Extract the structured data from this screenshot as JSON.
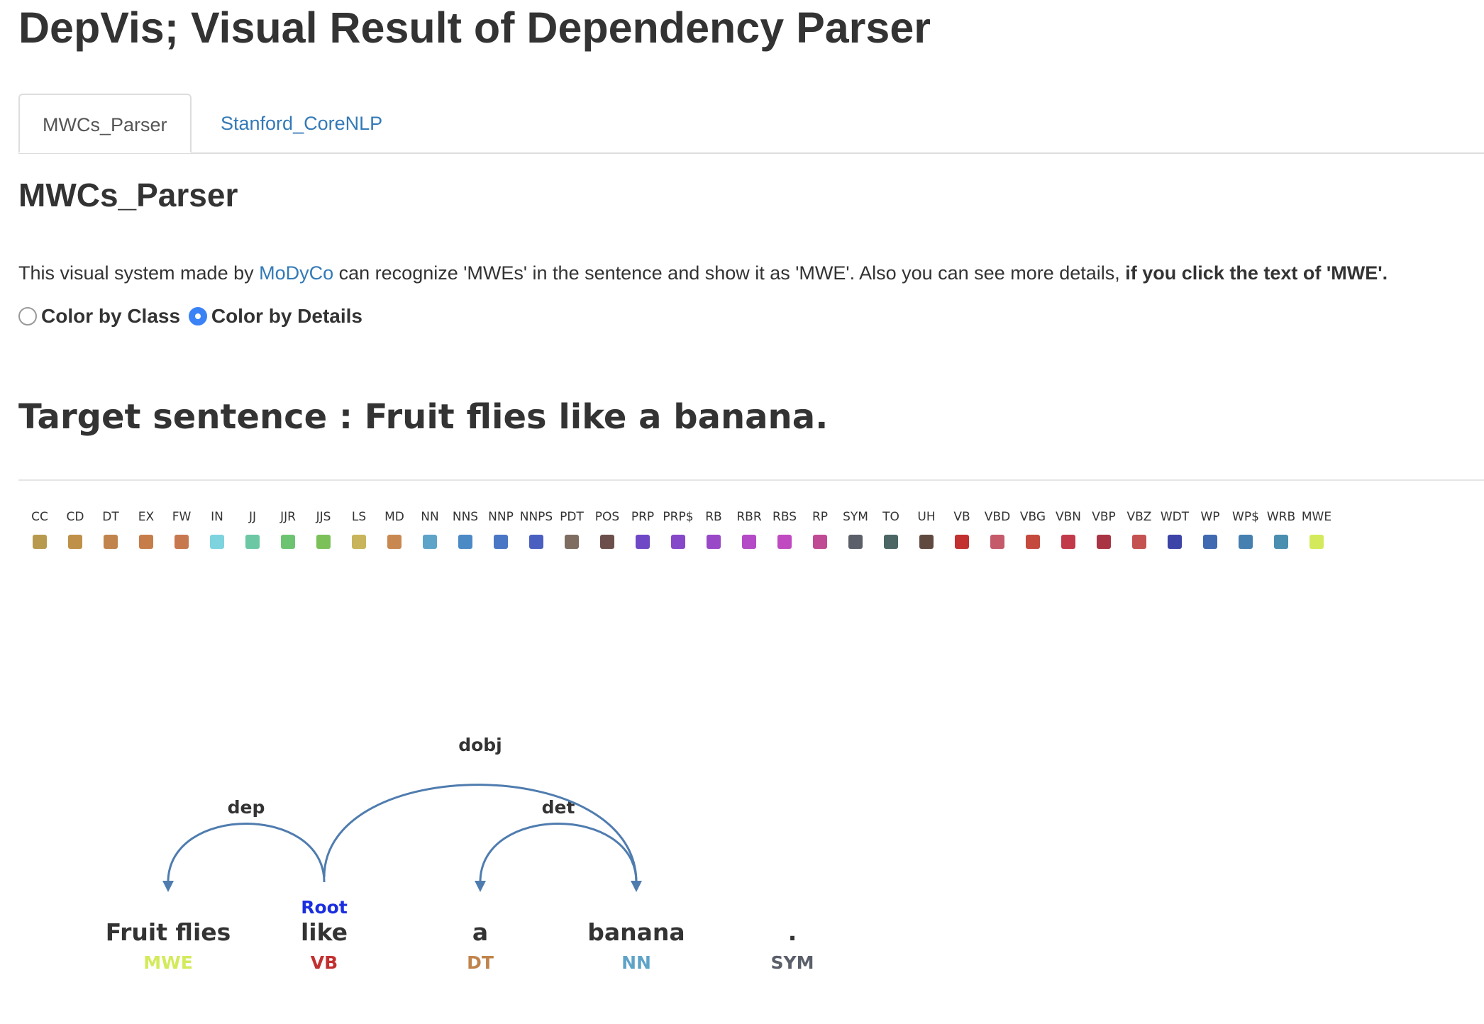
{
  "page": {
    "title": "DepVis; Visual Result of Dependency Parser"
  },
  "tabs": [
    {
      "label": "MWCs_Parser",
      "active": true
    },
    {
      "label": "Stanford_CoreNLP",
      "active": false
    }
  ],
  "section": {
    "title": "MWCs_Parser",
    "desc_prefix": "This visual system made by ",
    "desc_link": "MoDyCo",
    "desc_middle": " can recognize 'MWEs' in the sentence and show it as 'MWE'. Also you can see more details, ",
    "desc_bold": "if you click the text of 'MWE'."
  },
  "color_mode": {
    "options": [
      {
        "label": "Color by Class",
        "checked": false
      },
      {
        "label": "Color by Details",
        "checked": true
      }
    ]
  },
  "target": {
    "text": "Target sentence : Fruit flies like a banana."
  },
  "legend": [
    {
      "tag": "CC",
      "color": "#b89a4e"
    },
    {
      "tag": "CD",
      "color": "#bf9048"
    },
    {
      "tag": "DT",
      "color": "#c0844c"
    },
    {
      "tag": "EX",
      "color": "#c77d4a"
    },
    {
      "tag": "FW",
      "color": "#c8784e"
    },
    {
      "tag": "IN",
      "color": "#7dd4de"
    },
    {
      "tag": "JJ",
      "color": "#6cc7a4"
    },
    {
      "tag": "JJR",
      "color": "#6cc472"
    },
    {
      "tag": "JJS",
      "color": "#7cc05a"
    },
    {
      "tag": "LS",
      "color": "#c8b45a"
    },
    {
      "tag": "MD",
      "color": "#c98850"
    },
    {
      "tag": "NN",
      "color": "#5ea3c8"
    },
    {
      "tag": "NNS",
      "color": "#4c8ac6"
    },
    {
      "tag": "NNP",
      "color": "#4a76c6"
    },
    {
      "tag": "NNPS",
      "color": "#4a60c0"
    },
    {
      "tag": "PDT",
      "color": "#7f6d62"
    },
    {
      "tag": "POS",
      "color": "#6c4f4a"
    },
    {
      "tag": "PRP",
      "color": "#6f48c6"
    },
    {
      "tag": "PRP$",
      "color": "#8548c8"
    },
    {
      "tag": "RB",
      "color": "#9948c8"
    },
    {
      "tag": "RBR",
      "color": "#b44ac6"
    },
    {
      "tag": "RBS",
      "color": "#c04ac0"
    },
    {
      "tag": "RP",
      "color": "#c04a94"
    },
    {
      "tag": "SYM",
      "color": "#5a5f6a"
    },
    {
      "tag": "TO",
      "color": "#4b6664"
    },
    {
      "tag": "UH",
      "color": "#604a40"
    },
    {
      "tag": "VB",
      "color": "#c23030"
    },
    {
      "tag": "VBD",
      "color": "#c45a6a"
    },
    {
      "tag": "VBG",
      "color": "#c44a3e"
    },
    {
      "tag": "VBN",
      "color": "#c23a4a"
    },
    {
      "tag": "VBP",
      "color": "#a83444"
    },
    {
      "tag": "VBZ",
      "color": "#c45250"
    },
    {
      "tag": "WDT",
      "color": "#3c44a8"
    },
    {
      "tag": "WP",
      "color": "#3f69b0"
    },
    {
      "tag": "WP$",
      "color": "#4580b0"
    },
    {
      "tag": "WRB",
      "color": "#4a8eb0"
    },
    {
      "tag": "MWE",
      "color": "#d4ea5c"
    }
  ],
  "parse": {
    "root_label": "Root",
    "root_index": 1,
    "tokens": [
      {
        "word": "Fruit flies",
        "pos": "MWE",
        "pos_color": "#d4ea5c"
      },
      {
        "word": "like",
        "pos": "VB",
        "pos_color": "#c23030"
      },
      {
        "word": "a",
        "pos": "DT",
        "pos_color": "#c0844c"
      },
      {
        "word": "banana",
        "pos": "NN",
        "pos_color": "#5ea3c8"
      },
      {
        "word": ".",
        "pos": "SYM",
        "pos_color": "#5a5f6a"
      }
    ],
    "arcs": [
      {
        "label": "dep",
        "from": 1,
        "to": 0
      },
      {
        "label": "det",
        "from": 3,
        "to": 2
      },
      {
        "label": "dobj",
        "from": 1,
        "to": 3
      }
    ]
  }
}
